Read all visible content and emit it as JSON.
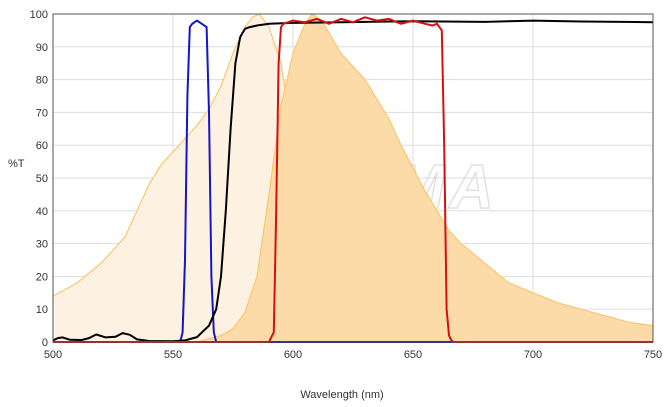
{
  "watermark": {
    "text": "CHROMA"
  },
  "chart_data": {
    "type": "line",
    "xlabel": "Wavelength (nm)",
    "ylabel": "%T",
    "xlim": [
      500,
      750
    ],
    "ylim": [
      0,
      100
    ],
    "xticks": [
      500,
      550,
      600,
      650,
      700,
      750
    ],
    "yticks": [
      0,
      10,
      20,
      30,
      40,
      50,
      60,
      70,
      80,
      90,
      100
    ],
    "grid": true,
    "legend": "none",
    "series": [
      {
        "key": "excitation_spectrum",
        "style": "area",
        "color": "#fbc56e",
        "fill": "#fdf1e1",
        "x": [
          500,
          510,
          520,
          530,
          535,
          540,
          545,
          550,
          555,
          560,
          565,
          570,
          575,
          580,
          583,
          586,
          590,
          595,
          600,
          605,
          610,
          615,
          620,
          630,
          640,
          650
        ],
        "y": [
          14,
          18,
          24,
          32,
          40,
          48,
          54,
          58,
          62,
          66,
          71,
          78,
          88,
          96,
          99,
          100,
          96,
          85,
          62,
          40,
          25,
          14,
          7,
          2,
          0.5,
          0
        ]
      },
      {
        "key": "emission_spectrum",
        "style": "area",
        "color": "#fbc56e",
        "fill": "#fddba8",
        "x": [
          560,
          570,
          575,
          580,
          585,
          590,
          595,
          600,
          605,
          608,
          612,
          616,
          620,
          625,
          630,
          635,
          640,
          645,
          650,
          655,
          660,
          665,
          670,
          680,
          690,
          700,
          710,
          720,
          730,
          740,
          750
        ],
        "y": [
          0,
          2,
          4,
          9,
          20,
          45,
          72,
          88,
          97,
          100,
          98,
          93,
          88,
          84,
          80,
          74,
          68,
          60,
          53,
          46,
          40,
          34,
          30,
          24,
          18,
          15,
          12,
          10,
          8,
          6,
          5
        ]
      },
      {
        "key": "excitation_filter",
        "style": "line",
        "color": "#1414c8",
        "x": [
          500,
          553,
          554,
          555,
          556,
          557,
          558,
          560,
          562,
          564,
          565,
          566,
          567,
          568,
          750
        ],
        "y": [
          0,
          0,
          3,
          25,
          75,
          96,
          97,
          98,
          97,
          96,
          70,
          20,
          3,
          0,
          0
        ]
      },
      {
        "key": "dichroic",
        "style": "line",
        "color": "#000000",
        "x": [
          500,
          502,
          504,
          507,
          512,
          515,
          518,
          522,
          526,
          529,
          532,
          535,
          540,
          550,
          555,
          560,
          565,
          568,
          570,
          572,
          574,
          576,
          578,
          580,
          582,
          585,
          590,
          600,
          620,
          650,
          680,
          700,
          720,
          750
        ],
        "y": [
          0.5,
          1.2,
          1.4,
          0.7,
          0.6,
          1.2,
          2.3,
          1.4,
          1.6,
          2.7,
          2.2,
          0.8,
          0.3,
          0.2,
          0.5,
          1.5,
          5,
          10,
          20,
          40,
          65,
          85,
          93,
          95.5,
          96,
          96.5,
          97,
          97.3,
          97.5,
          97.8,
          97.6,
          98,
          97.7,
          97.5
        ]
      },
      {
        "key": "emission_filter",
        "style": "line",
        "color": "#d51010",
        "x": [
          500,
          590,
          592,
          593,
          594,
          595,
          596,
          600,
          605,
          610,
          615,
          620,
          625,
          630,
          635,
          640,
          645,
          650,
          655,
          658,
          660,
          662,
          663,
          664,
          665,
          666,
          667,
          750
        ],
        "y": [
          0,
          0,
          3,
          40,
          85,
          96,
          97,
          98,
          97.5,
          98.5,
          97,
          98.5,
          97.5,
          99,
          98,
          98.5,
          97,
          98,
          97,
          96.5,
          97,
          95,
          60,
          10,
          2,
          0.5,
          0,
          0
        ]
      }
    ]
  }
}
